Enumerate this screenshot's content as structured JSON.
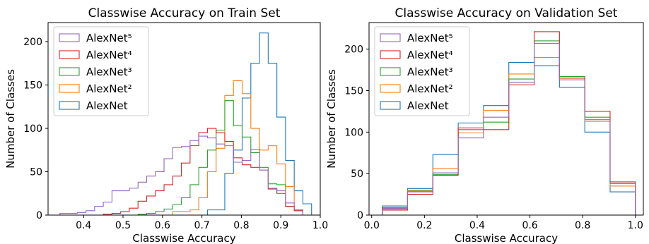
{
  "chart_data": [
    {
      "type": "histogram-step",
      "title": "Classwise Accuracy on Train Set",
      "xlabel": "Classwise Accuracy",
      "ylabel": "Number of Classes",
      "xlim": [
        0.31,
        1.0
      ],
      "ylim": [
        0,
        222
      ],
      "xticks": [
        "0.4",
        "0.5",
        "0.6",
        "0.7",
        "0.8",
        "0.9",
        "1.0"
      ],
      "xtick_values": [
        0.4,
        0.5,
        0.6,
        0.7,
        0.8,
        0.9,
        1.0
      ],
      "yticks": [
        "0",
        "50",
        "100",
        "150",
        "200"
      ],
      "ytick_values": [
        0,
        50,
        100,
        150,
        200
      ],
      "legend": "top-left",
      "bin_edges": [
        0.34,
        0.362,
        0.384,
        0.406,
        0.428,
        0.45,
        0.472,
        0.494,
        0.516,
        0.538,
        0.56,
        0.582,
        0.604,
        0.626,
        0.648,
        0.67,
        0.692,
        0.714,
        0.736,
        0.758,
        0.78,
        0.802,
        0.824,
        0.846,
        0.868,
        0.89,
        0.912,
        0.934,
        0.956,
        0.978
      ],
      "series": [
        {
          "name": "AlexNet⁵",
          "color": "#9467bd",
          "values": [
            2,
            2,
            3,
            5,
            10,
            15,
            28,
            28,
            31,
            38,
            45,
            50,
            65,
            78,
            79,
            86,
            91,
            89,
            82,
            80,
            61,
            63,
            76,
            52,
            31,
            28,
            14,
            6,
            0
          ]
        },
        {
          "name": "AlexNet⁴",
          "color": "#d62728",
          "values": [
            0,
            0,
            0,
            0,
            0,
            1,
            2,
            4,
            8,
            16,
            22,
            28,
            35,
            45,
            60,
            80,
            95,
            100,
            95,
            85,
            66,
            58,
            55,
            52,
            30,
            25,
            10,
            5,
            0
          ]
        },
        {
          "name": "AlexNet³",
          "color": "#2ca02c",
          "values": [
            0,
            0,
            0,
            0,
            0,
            0,
            0,
            0,
            0,
            1,
            2,
            4,
            7,
            12,
            20,
            35,
            55,
            75,
            98,
            132,
            103,
            90,
            72,
            55,
            36,
            35,
            10,
            5,
            0
          ]
        },
        {
          "name": "AlexNet²",
          "color": "#ff7f0e",
          "values": [
            0,
            0,
            0,
            0,
            0,
            0,
            0,
            0,
            0,
            0,
            0,
            0,
            0,
            4,
            4,
            6,
            20,
            50,
            77,
            138,
            155,
            140,
            100,
            75,
            80,
            59,
            33,
            6,
            0
          ]
        },
        {
          "name": "AlexNet",
          "color": "#1f77b4",
          "values": [
            0,
            0,
            0,
            0,
            0,
            0,
            0,
            0,
            0,
            0,
            0,
            0,
            0,
            0,
            0,
            0,
            0,
            6,
            6,
            48,
            75,
            135,
            175,
            210,
            175,
            113,
            63,
            28,
            13
          ]
        }
      ]
    },
    {
      "type": "histogram-step",
      "title": "Classwise Accuracy on Validation Set",
      "xlabel": "Classwise Accuracy",
      "ylabel": "Number of Classes",
      "xlim": [
        -0.01,
        1.03
      ],
      "ylim": [
        0,
        232
      ],
      "xticks": [
        "0.0",
        "0.2",
        "0.4",
        "0.6",
        "0.8",
        "1.0"
      ],
      "xtick_values": [
        0.0,
        0.2,
        0.4,
        0.6,
        0.8,
        1.0
      ],
      "yticks": [
        "0",
        "50",
        "100",
        "150",
        "200"
      ],
      "ytick_values": [
        0,
        50,
        100,
        150,
        200
      ],
      "legend": "top-left",
      "bin_edges": [
        0.04,
        0.136,
        0.232,
        0.328,
        0.424,
        0.52,
        0.616,
        0.712,
        0.808,
        0.904,
        1.0
      ],
      "series": [
        {
          "name": "AlexNet⁵",
          "color": "#9467bd",
          "values": [
            8,
            28,
            51,
            93,
            118,
            160,
            207,
            163,
            115,
            38
          ]
        },
        {
          "name": "AlexNet⁴",
          "color": "#d62728",
          "values": [
            6,
            25,
            48,
            105,
            103,
            157,
            221,
            165,
            125,
            40
          ]
        },
        {
          "name": "AlexNet³",
          "color": "#2ca02c",
          "values": [
            9,
            29,
            49,
            103,
            112,
            164,
            210,
            167,
            118,
            38
          ]
        },
        {
          "name": "AlexNet²",
          "color": "#ff7f0e",
          "values": [
            7,
            30,
            56,
            99,
            126,
            170,
            190,
            165,
            113,
            35
          ]
        },
        {
          "name": "AlexNet",
          "color": "#1f77b4",
          "values": [
            11,
            32,
            73,
            111,
            132,
            184,
            180,
            154,
            100,
            28
          ]
        }
      ]
    }
  ]
}
